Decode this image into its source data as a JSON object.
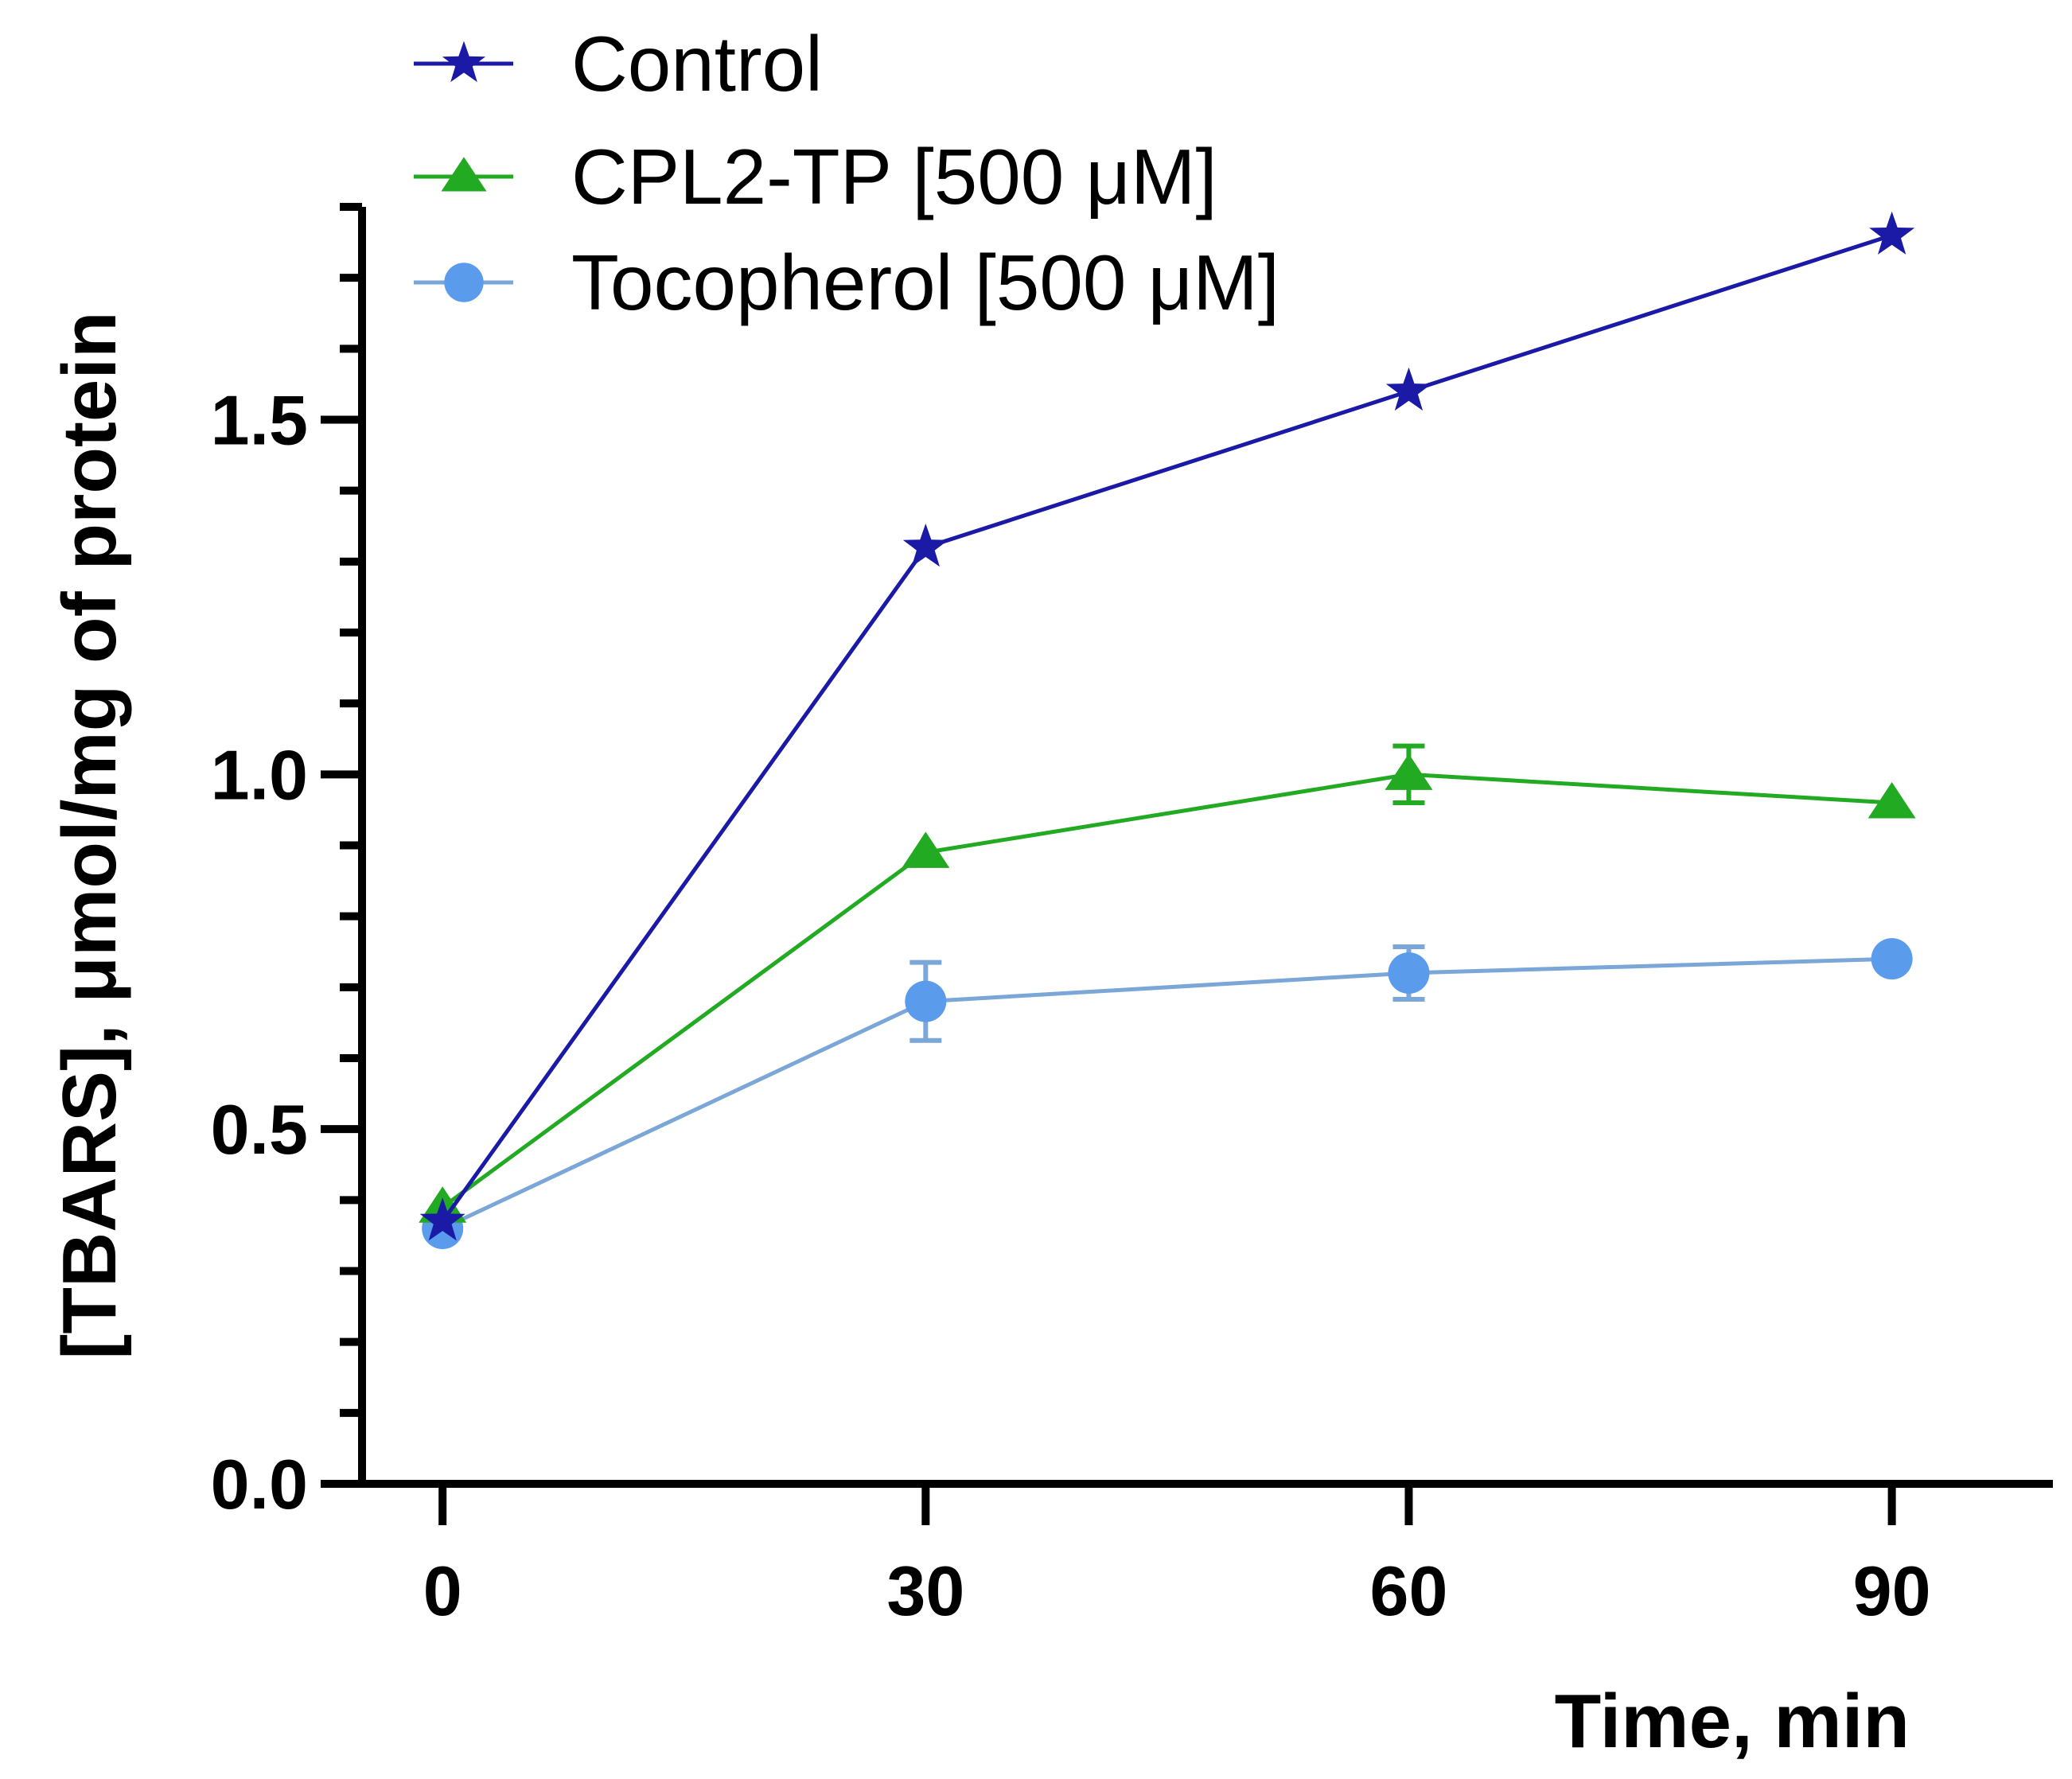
{
  "chart_data": {
    "type": "line",
    "title": "",
    "xlabel": "Time, min",
    "ylabel": "[TBARS], μmol/mg of protein",
    "xlim": [
      -5,
      100
    ],
    "ylim": [
      0,
      1.8
    ],
    "x_ticks": [
      "0",
      "30",
      "60",
      "90"
    ],
    "x_tick_values": [
      0,
      30,
      60,
      90
    ],
    "y_ticks": [
      "0.0",
      "0.5",
      "1.0",
      "1.5"
    ],
    "y_tick_values": [
      0,
      0.5,
      1.0,
      1.5
    ],
    "y_minor_step": 0.1,
    "legend_position": "top-left",
    "series": [
      {
        "name": "Control",
        "color": "#1a1aa6",
        "marker": "star",
        "x": [
          0,
          30,
          60,
          90
        ],
        "y": [
          0.37,
          1.32,
          1.54,
          1.76
        ],
        "error": [
          0,
          0,
          0,
          0
        ]
      },
      {
        "name": "CPL2-TP [500 μM]",
        "color": "#22aa22",
        "marker": "triangle",
        "x": [
          0,
          30,
          60,
          90
        ],
        "y": [
          0.39,
          0.89,
          1.0,
          0.96
        ],
        "error": [
          0,
          0,
          0.04,
          0
        ]
      },
      {
        "name": "Tocopherol [500 μM]",
        "color": "#5b9bec",
        "line_color": "#7aa6d8",
        "marker": "circle",
        "x": [
          0,
          30,
          60,
          90
        ],
        "y": [
          0.36,
          0.68,
          0.72,
          0.74
        ],
        "error": [
          0,
          0.055,
          0.037,
          0
        ]
      }
    ]
  }
}
